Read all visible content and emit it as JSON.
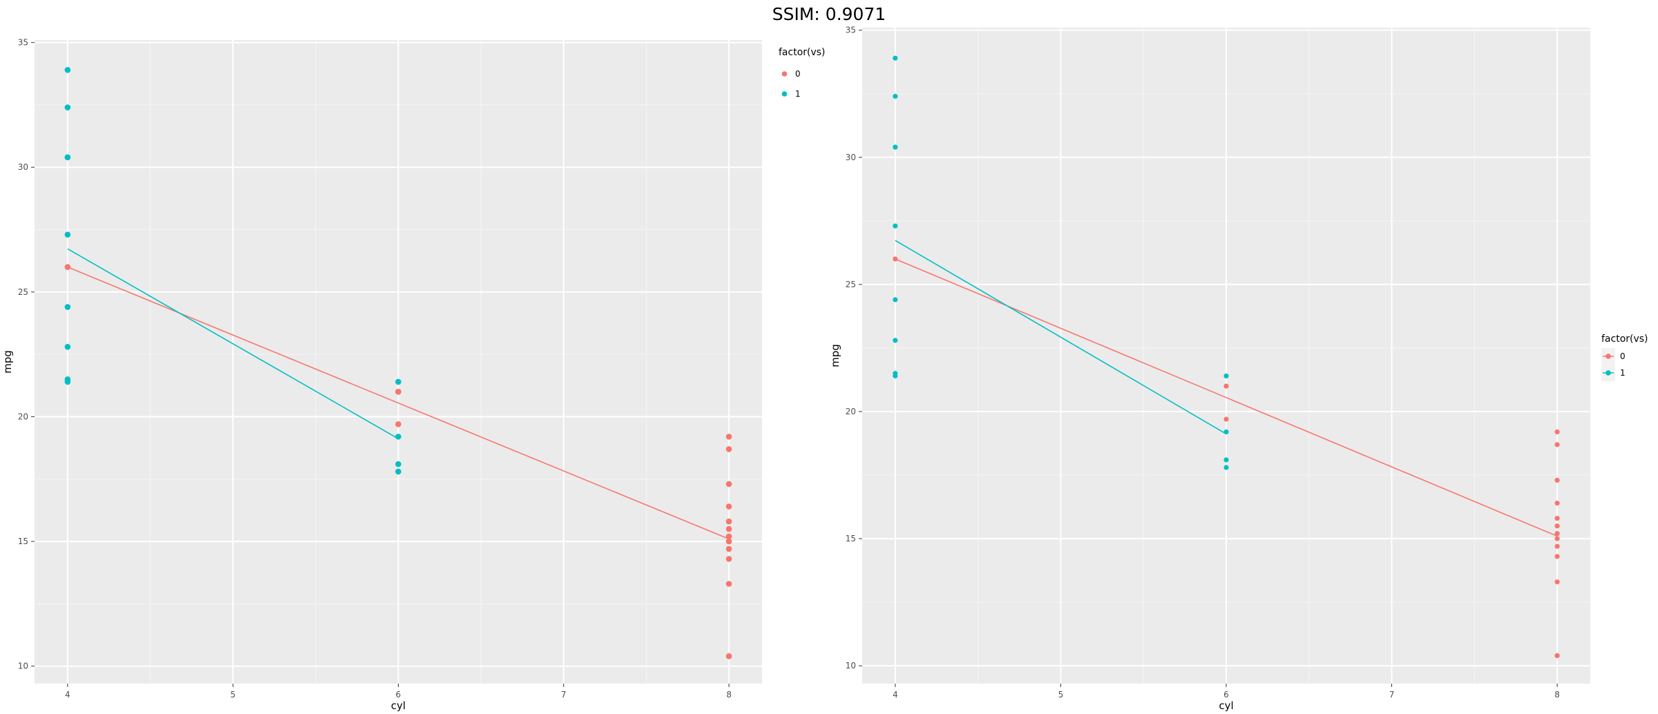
{
  "title": "SSIM: 0.9071",
  "chart_data": [
    {
      "type": "scatter",
      "panel": "left",
      "xlabel": "cyl",
      "ylabel": "mpg",
      "xlim": [
        3.8,
        8.2
      ],
      "ylim": [
        9.3,
        35.1
      ],
      "x_ticks": [
        4,
        5,
        6,
        7,
        8
      ],
      "y_ticks": [
        10,
        15,
        20,
        25,
        30,
        35
      ],
      "grid": true,
      "legend": {
        "title": "factor(vs)",
        "position": "top-right",
        "entries": [
          "0",
          "1"
        ]
      },
      "colors": {
        "0": "#F8766D",
        "1": "#00BFC4"
      },
      "series": [
        {
          "name": "0",
          "points": [
            [
              4,
              26.0
            ],
            [
              6,
              21.0
            ],
            [
              6,
              21.0
            ],
            [
              6,
              19.7
            ],
            [
              8,
              19.2
            ],
            [
              8,
              18.7
            ],
            [
              8,
              17.3
            ],
            [
              8,
              16.4
            ],
            [
              8,
              15.8
            ],
            [
              8,
              15.5
            ],
            [
              8,
              15.2
            ],
            [
              8,
              15.2
            ],
            [
              8,
              15.0
            ],
            [
              8,
              14.7
            ],
            [
              8,
              14.3
            ],
            [
              8,
              13.3
            ],
            [
              8,
              10.4
            ],
            [
              8,
              10.4
            ]
          ],
          "fit": [
            [
              4,
              26.0
            ],
            [
              8,
              15.1
            ]
          ]
        },
        {
          "name": "1",
          "points": [
            [
              4,
              33.9
            ],
            [
              4,
              32.4
            ],
            [
              4,
              30.4
            ],
            [
              4,
              30.4
            ],
            [
              4,
              27.3
            ],
            [
              4,
              24.4
            ],
            [
              4,
              22.8
            ],
            [
              4,
              21.5
            ],
            [
              4,
              21.4
            ],
            [
              6,
              21.4
            ],
            [
              6,
              19.2
            ],
            [
              6,
              18.1
            ],
            [
              6,
              17.8
            ]
          ],
          "fit": [
            [
              4,
              26.73
            ],
            [
              6,
              19.12
            ]
          ]
        }
      ]
    },
    {
      "type": "scatter",
      "panel": "right",
      "xlabel": "cyl",
      "ylabel": "mpg",
      "xlim": [
        3.8,
        8.2
      ],
      "ylim": [
        9.3,
        35.1
      ],
      "x_ticks": [
        4,
        5,
        6,
        7,
        8
      ],
      "y_ticks": [
        10,
        15,
        20,
        25,
        30,
        35
      ],
      "grid": true,
      "legend": {
        "title": "factor(vs)",
        "position": "right",
        "entries": [
          "0",
          "1"
        ]
      },
      "colors": {
        "0": "#F8766D",
        "1": "#00BFC4"
      },
      "series": [
        {
          "name": "0",
          "points": [
            [
              4,
              26.0
            ],
            [
              6,
              21.0
            ],
            [
              6,
              21.0
            ],
            [
              6,
              19.7
            ],
            [
              8,
              19.2
            ],
            [
              8,
              18.7
            ],
            [
              8,
              17.3
            ],
            [
              8,
              16.4
            ],
            [
              8,
              15.8
            ],
            [
              8,
              15.5
            ],
            [
              8,
              15.2
            ],
            [
              8,
              15.2
            ],
            [
              8,
              15.0
            ],
            [
              8,
              14.7
            ],
            [
              8,
              14.3
            ],
            [
              8,
              13.3
            ],
            [
              8,
              10.4
            ],
            [
              8,
              10.4
            ]
          ],
          "fit": [
            [
              4,
              26.0
            ],
            [
              8,
              15.1
            ]
          ]
        },
        {
          "name": "1",
          "points": [
            [
              4,
              33.9
            ],
            [
              4,
              32.4
            ],
            [
              4,
              30.4
            ],
            [
              4,
              30.4
            ],
            [
              4,
              27.3
            ],
            [
              4,
              24.4
            ],
            [
              4,
              22.8
            ],
            [
              4,
              21.5
            ],
            [
              4,
              21.4
            ],
            [
              6,
              21.4
            ],
            [
              6,
              19.2
            ],
            [
              6,
              18.1
            ],
            [
              6,
              17.8
            ]
          ],
          "fit": [
            [
              4,
              26.73
            ],
            [
              6,
              19.12
            ]
          ]
        }
      ]
    }
  ]
}
